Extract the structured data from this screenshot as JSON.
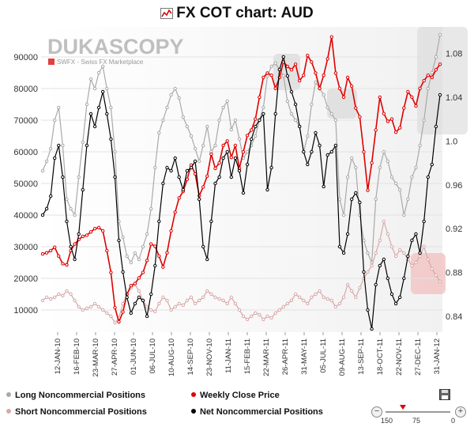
{
  "chart_data": {
    "type": "line",
    "title": "FX COT chart: AUD",
    "x_tick_labels": [
      "12-JAN-10",
      "16-FEB-10",
      "23-MAR-10",
      "27-APR-10",
      "01-JUN-10",
      "06-JUL-10",
      "10-AUG-10",
      "14-SEP-10",
      "23-NOV-10",
      "11-JAN-11",
      "15-FEB-11",
      "22-MAR-11",
      "26-APR-11",
      "31-MAY-11",
      "05-JUL-11",
      "09-AUG-11",
      "13-SEP-11",
      "18-OCT-11",
      "22-NOV-11",
      "27-DEC-11",
      "31-JAN-12"
    ],
    "y_left_ticks": [
      10000,
      20000,
      30000,
      40000,
      50000,
      60000,
      70000,
      80000,
      90000
    ],
    "y_right_ticks": [
      0.84,
      0.88,
      0.92,
      0.96,
      1.0,
      1.04,
      1.08
    ],
    "y_left_range": [
      3000,
      99000
    ],
    "y_right_range": [
      0.8256,
      1.1027
    ],
    "legend_position": "bottom",
    "series": [
      {
        "name": "Long Noncommercial Positions",
        "axis": "left",
        "color": "#a9a9a9",
        "values": [
          54000,
          57000,
          61000,
          70000,
          74000,
          62000,
          45000,
          42000,
          40000,
          52000,
          63000,
          75000,
          83000,
          80000,
          85000,
          87000,
          80000,
          74000,
          60000,
          38000,
          33000,
          27000,
          25000,
          28000,
          26000,
          30000,
          34000,
          42000,
          55000,
          66000,
          70000,
          74000,
          78000,
          80000,
          77000,
          71000,
          68000,
          65000,
          61000,
          57000,
          62000,
          68000,
          60000,
          62000,
          70000,
          74000,
          76000,
          67000,
          70000,
          64000,
          58000,
          60000,
          62000,
          65000,
          70000,
          74000,
          84000,
          87000,
          88000,
          86000,
          84000,
          76000,
          72000,
          70000,
          68000,
          60000,
          65000,
          75000,
          82000,
          80000,
          78000,
          74000,
          72000,
          70000,
          45000,
          40000,
          52000,
          58000,
          55000,
          40000,
          32000,
          28000,
          25000,
          45000,
          55000,
          60000,
          57000,
          52000,
          50000,
          48000,
          40000,
          45000,
          52000,
          55000,
          62000,
          70000,
          80000,
          85000,
          90000,
          97000
        ]
      },
      {
        "name": "Weekly Close Price",
        "axis": "right",
        "color": "#e00000",
        "values": [
          0.897,
          0.898,
          0.9,
          0.903,
          0.895,
          0.888,
          0.887,
          0.9,
          0.906,
          0.91,
          0.913,
          0.914,
          0.917,
          0.92,
          0.921,
          0.918,
          0.9,
          0.88,
          0.848,
          0.835,
          0.844,
          0.86,
          0.868,
          0.87,
          0.875,
          0.88,
          0.891,
          0.906,
          0.904,
          0.895,
          0.885,
          0.898,
          0.918,
          0.935,
          0.948,
          0.954,
          0.965,
          0.978,
          0.97,
          0.95,
          0.958,
          0.968,
          0.988,
          0.975,
          0.98,
          0.996,
          1.0,
          0.985,
          0.996,
          0.975,
          0.99,
          1.005,
          1.01,
          1.02,
          1.04,
          1.058,
          1.062,
          1.06,
          1.048,
          1.058,
          1.072,
          1.068,
          1.065,
          1.07,
          1.055,
          1.06,
          1.078,
          1.072,
          1.062,
          1.048,
          1.06,
          1.075,
          1.095,
          1.062,
          1.048,
          1.04,
          1.058,
          1.05,
          1.03,
          1.022,
          0.99,
          0.955,
          0.98,
          1.01,
          1.04,
          1.025,
          1.018,
          1.02,
          1.008,
          1.012,
          1.03,
          1.045,
          1.04,
          1.032,
          1.048,
          1.055,
          1.06,
          1.058,
          1.065,
          1.07
        ]
      },
      {
        "name": "Short Noncommercial Positions",
        "axis": "left",
        "color": "#d8a8a8",
        "values": [
          13000,
          14000,
          13500,
          14000,
          15000,
          14500,
          16000,
          15000,
          13000,
          11000,
          10000,
          10500,
          11000,
          12000,
          11000,
          10000,
          9000,
          8000,
          6000,
          7500,
          12000,
          15000,
          17000,
          18000,
          16000,
          13000,
          11000,
          10000,
          9500,
          12000,
          14000,
          13000,
          10000,
          11000,
          12000,
          11500,
          13000,
          14000,
          12000,
          13000,
          14000,
          16000,
          15000,
          14000,
          13500,
          13000,
          12000,
          14000,
          12000,
          10000,
          8000,
          7000,
          8000,
          9000,
          8500,
          7000,
          8000,
          7500,
          9000,
          10000,
          11000,
          12000,
          13000,
          15000,
          14000,
          13000,
          12000,
          14000,
          15000,
          16000,
          14000,
          13500,
          13000,
          11000,
          12000,
          14000,
          18000,
          16000,
          14000,
          17000,
          20000,
          22000,
          24000,
          28000,
          32000,
          38000,
          34000,
          30000,
          27000,
          29000,
          28000,
          26000,
          24000,
          25000,
          27000,
          30000,
          26000,
          23000,
          21000,
          19000
        ]
      },
      {
        "name": "Net Noncommercial Positions",
        "axis": "left",
        "color": "#000000",
        "values": [
          40000,
          42000,
          46000,
          58000,
          62000,
          52000,
          38000,
          30000,
          26000,
          34000,
          48000,
          62000,
          72000,
          68000,
          74000,
          79000,
          72000,
          64000,
          52000,
          32000,
          22000,
          14000,
          9000,
          12000,
          14000,
          13000,
          8000,
          15000,
          24000,
          38000,
          50000,
          55000,
          54000,
          58000,
          52000,
          48000,
          54000,
          55000,
          57000,
          45000,
          30000,
          26000,
          38000,
          50000,
          52000,
          58000,
          60000,
          52000,
          58000,
          54000,
          47000,
          56000,
          64000,
          68000,
          70000,
          72000,
          48000,
          55000,
          72000,
          86000,
          90000,
          84000,
          79000,
          75000,
          68000,
          60000,
          56000,
          60000,
          66000,
          62000,
          49000,
          59000,
          60000,
          62000,
          30000,
          28000,
          34000,
          45000,
          47000,
          44000,
          22000,
          10000,
          4000,
          18000,
          24000,
          26000,
          20000,
          15000,
          12000,
          14000,
          20000,
          27000,
          32000,
          34000,
          28000,
          38000,
          52000,
          56000,
          68000,
          78000
        ]
      }
    ]
  },
  "legend": {
    "long": "Long Noncommercial Positions",
    "price": "Weekly Close Price",
    "short": "Short Noncommercial Positions",
    "net": "Net Noncommercial Positions"
  },
  "watermark": {
    "brand": "DUKASCOPY",
    "tagline": "SWFX - Swiss FX Marketplace"
  },
  "zoom": {
    "left_label": "150",
    "mid_label": "75",
    "right_label": "0",
    "minus": "−",
    "plus": "+"
  },
  "colors": {
    "grid": "#e2e2e2",
    "axis": "#999999",
    "plot_bg": "#ffffff",
    "highlight_gray": "#d8d8d8",
    "highlight_red": "#f3c2c2"
  }
}
